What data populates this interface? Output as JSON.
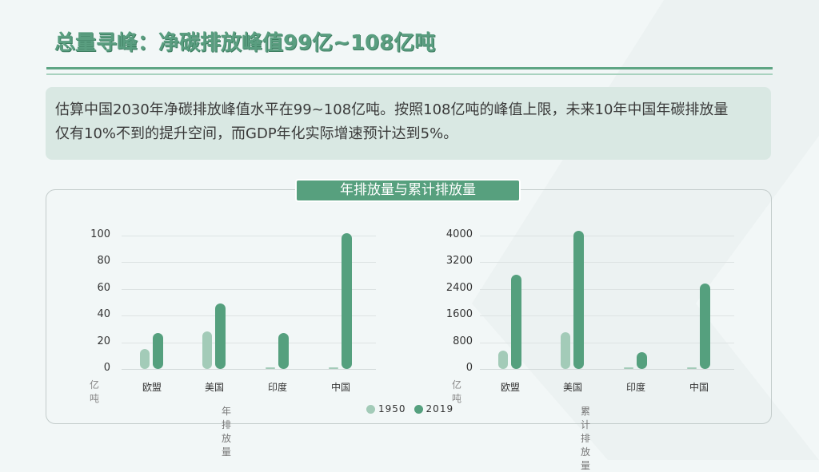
{
  "title": "总量寻峰：净碳排放峰值99亿~108亿吨",
  "summary": {
    "line1": "估算中国2030年净碳排放峰值水平在99~108亿吨。按照108亿吨的峰值上限，未来10年中国年碳排放量",
    "line2": "仅有10%不到的提升空间，而GDP年化实际增速预计达到5%。"
  },
  "panel_title": "年排放量与累计排放量",
  "colors": {
    "series_1950": "#a3cbb8",
    "series_2019": "#55a07e",
    "accent": "#5a9e80"
  },
  "legend": [
    {
      "label": "1950",
      "color": "#a3cbb8"
    },
    {
      "label": "2019",
      "color": "#55a07e"
    }
  ],
  "chart_data": [
    {
      "type": "bar",
      "title": "年排放量",
      "xlabel": "年排放量",
      "ylabel": "亿吨",
      "unit_label": "亿吨",
      "categories": [
        "欧盟",
        "美国",
        "印度",
        "中国"
      ],
      "series": [
        {
          "name": "1950",
          "values": [
            15,
            28,
            0.5,
            0.5
          ]
        },
        {
          "name": "2019",
          "values": [
            27,
            49,
            27,
            102
          ]
        }
      ],
      "yticks": [
        "100",
        "80",
        "60",
        "40",
        "20",
        "0"
      ],
      "ylim": [
        0,
        100
      ],
      "grid": true,
      "legend_position": "bottom"
    },
    {
      "type": "bar",
      "title": "累计排放量",
      "xlabel": "累计排放量",
      "ylabel": "亿吨",
      "unit_label": "亿吨",
      "categories": [
        "欧盟",
        "美国",
        "印度",
        "中国"
      ],
      "series": [
        {
          "name": "1950",
          "values": [
            560,
            1100,
            10,
            10
          ]
        },
        {
          "name": "2019",
          "values": [
            2820,
            4150,
            500,
            2570
          ]
        }
      ],
      "yticks": [
        "4000",
        "3200",
        "2400",
        "1600",
        "800",
        "0"
      ],
      "ylim": [
        0,
        4000
      ],
      "grid": true,
      "legend_position": "bottom"
    }
  ]
}
